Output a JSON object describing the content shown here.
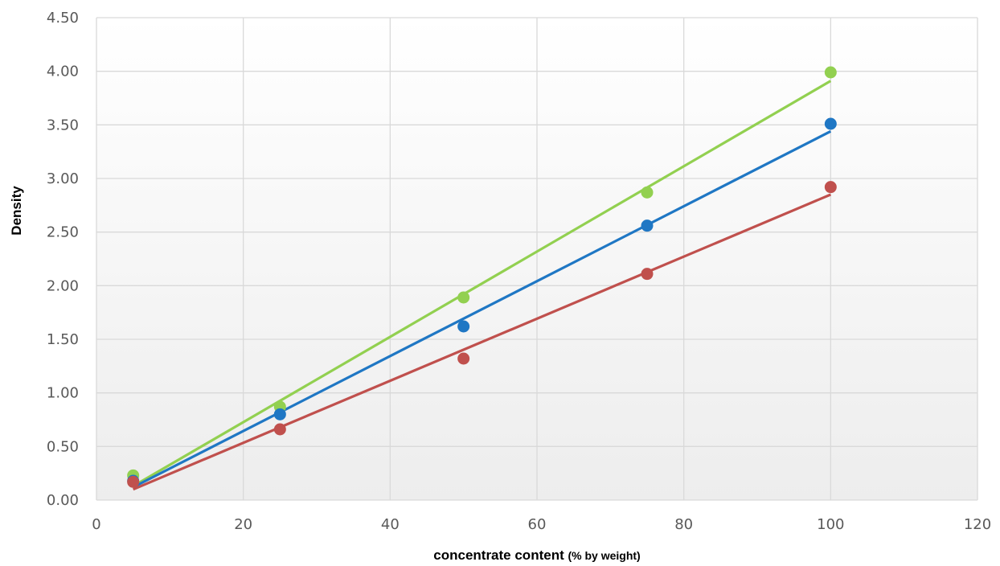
{
  "chart_data": {
    "type": "scatter",
    "title": "",
    "xlabel": "concentrate content",
    "xlabel_unit": "(% by weight)",
    "ylabel": "Density",
    "xlim": [
      0,
      120
    ],
    "ylim": [
      0,
      4.5
    ],
    "x_ticks": [
      "0",
      "20",
      "40",
      "60",
      "80",
      "100",
      "120"
    ],
    "y_ticks": [
      "0.00",
      "0.50",
      "1.00",
      "1.50",
      "2.00",
      "2.50",
      "3.00",
      "3.50",
      "4.00",
      "4.50"
    ],
    "grid": true,
    "legend": "none",
    "x": [
      5,
      25,
      50,
      75,
      100
    ],
    "series": [
      {
        "color": "#92d050",
        "values": [
          0.23,
          0.87,
          1.89,
          2.87,
          3.99
        ],
        "trendline": [
          [
            5,
            0.13
          ],
          [
            100,
            3.91
          ]
        ]
      },
      {
        "color": "#1f77c4",
        "values": [
          0.18,
          0.8,
          1.62,
          2.56,
          3.51
        ],
        "trendline": [
          [
            5,
            0.12
          ],
          [
            100,
            3.44
          ]
        ]
      },
      {
        "color": "#c0504d",
        "values": [
          0.17,
          0.66,
          1.32,
          2.11,
          2.92
        ],
        "trendline": [
          [
            5,
            0.1
          ],
          [
            100,
            2.85
          ]
        ]
      }
    ]
  }
}
